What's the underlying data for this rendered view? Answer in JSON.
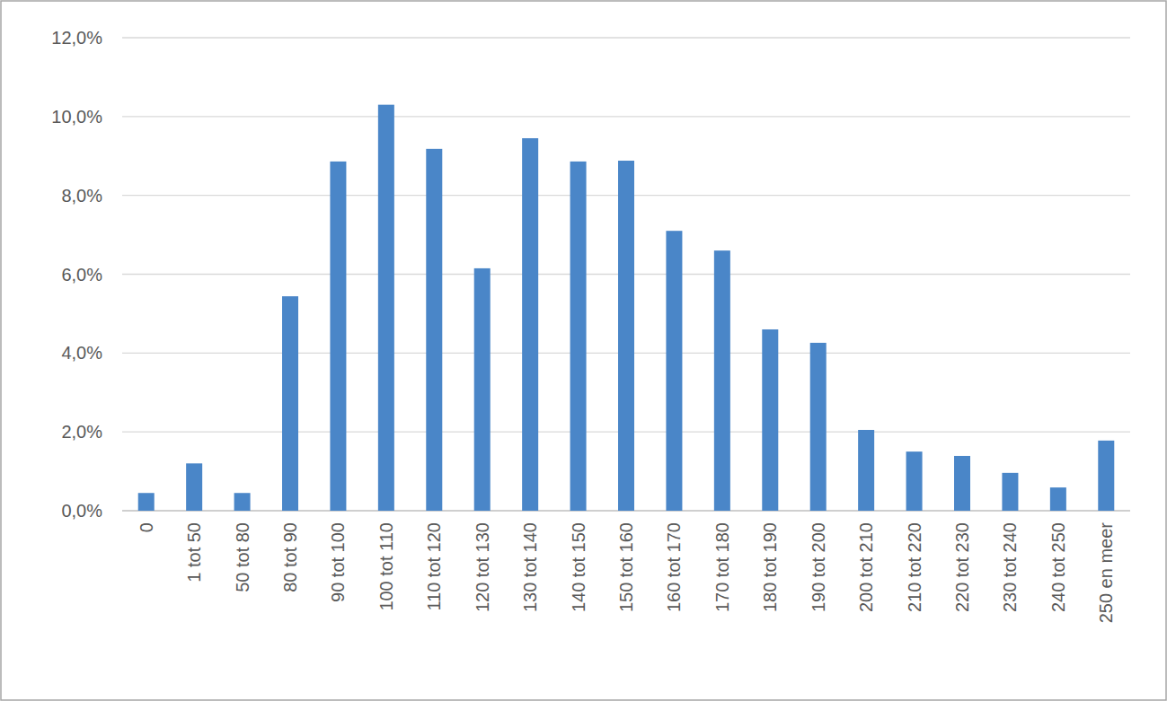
{
  "chart_data": {
    "type": "bar",
    "categories": [
      "0",
      "1 tot 50",
      "50 tot 80",
      "80 tot 90",
      "90 tot 100",
      "100 tot 110",
      "110 tot 120",
      "120 tot 130",
      "130 tot 140",
      "140 tot 150",
      "150 tot 160",
      "160 tot 170",
      "170 tot 180",
      "180 tot 190",
      "190 tot 200",
      "200 tot 210",
      "210 tot 220",
      "220 tot 230",
      "230 tot 240",
      "240 tot 250",
      "250 en meer"
    ],
    "values": [
      0.45,
      1.2,
      0.45,
      5.44,
      8.86,
      10.3,
      9.18,
      6.15,
      9.45,
      8.86,
      8.88,
      7.1,
      6.6,
      4.6,
      4.26,
      2.05,
      1.5,
      1.39,
      0.96,
      0.59,
      1.78
    ],
    "color": "#4a86c8",
    "ylim": [
      0,
      12
    ],
    "yticks": [
      {
        "value": 0,
        "label": "0,0%"
      },
      {
        "value": 2,
        "label": "2,0%"
      },
      {
        "value": 4,
        "label": "4,0%"
      },
      {
        "value": 6,
        "label": "6,0%"
      },
      {
        "value": 8,
        "label": "8,0%"
      },
      {
        "value": 10,
        "label": "10,0%"
      },
      {
        "value": 12,
        "label": "12,0%"
      }
    ],
    "grid": true
  }
}
